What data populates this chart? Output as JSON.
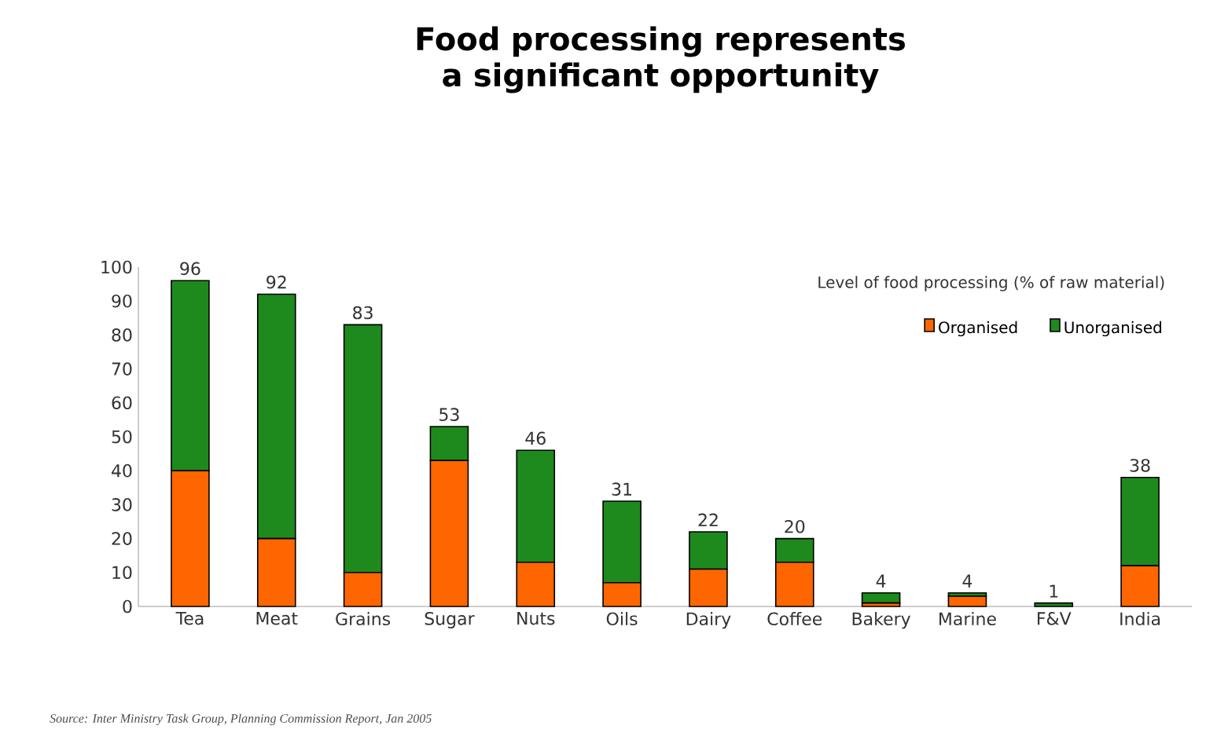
{
  "chart_data": {
    "type": "bar",
    "stacked": true,
    "title": "Food processing represents a significant opportunity",
    "legend_title": "Level of food processing (% of raw material)",
    "categories": [
      "Tea",
      "Meat",
      "Grains",
      "Sugar",
      "Nuts",
      "Oils",
      "Dairy",
      "Coffee",
      "Bakery",
      "Marine",
      "F&V",
      "India"
    ],
    "series": [
      {
        "name": "Organised",
        "color": "#ff6600",
        "values": [
          40,
          20,
          10,
          43,
          13,
          7,
          11,
          13,
          1,
          3,
          0,
          12
        ]
      },
      {
        "name": "Unorganised",
        "color": "#1e8a1e",
        "values": [
          56,
          72,
          73,
          10,
          33,
          24,
          11,
          7,
          3,
          1,
          1,
          26
        ]
      }
    ],
    "totals": [
      "96",
      "92",
      "83",
      "53",
      "46",
      "31",
      "22",
      "20",
      "4",
      "4",
      "1",
      "38"
    ],
    "ylim": [
      0,
      100
    ],
    "yticks": [
      0,
      10,
      20,
      30,
      40,
      50,
      60,
      70,
      80,
      90,
      100
    ],
    "legend": "top right",
    "annotations": [
      "Source: Inter Ministry Task Group, Planning Commission Report, Jan 2005"
    ]
  }
}
